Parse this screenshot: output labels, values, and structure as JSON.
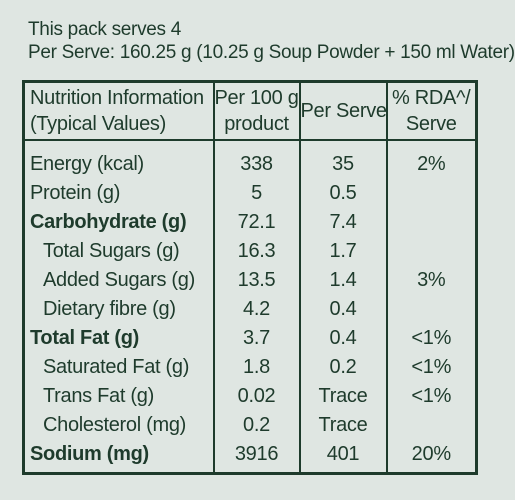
{
  "intro": {
    "serves": "This pack serves 4",
    "per_serve": "Per Serve: 160.25 g (10.25 g Soup Powder + 150 ml Water)"
  },
  "table": {
    "headers": {
      "col1": [
        "Nutrition Information",
        "(Typical Values)"
      ],
      "col2": [
        "Per 100 g",
        "product"
      ],
      "col3": [
        "Per Serve"
      ],
      "col4": [
        "% RDA^/",
        "Serve"
      ]
    },
    "rows": [
      {
        "name": "Energy (kcal)",
        "per100": "338",
        "perServe": "35",
        "rda": "2%",
        "bold": false,
        "indent": false
      },
      {
        "name": "Protein (g)",
        "per100": "5",
        "perServe": "0.5",
        "rda": "",
        "bold": false,
        "indent": false
      },
      {
        "name": "Carbohydrate (g)",
        "per100": "72.1",
        "perServe": "7.4",
        "rda": "",
        "bold": true,
        "indent": false
      },
      {
        "name": "Total Sugars (g)",
        "per100": "16.3",
        "perServe": "1.7",
        "rda": "",
        "bold": false,
        "indent": true
      },
      {
        "name": "Added Sugars (g)",
        "per100": "13.5",
        "perServe": "1.4",
        "rda": "3%",
        "bold": false,
        "indent": true
      },
      {
        "name": "Dietary fibre (g)",
        "per100": "4.2",
        "perServe": "0.4",
        "rda": "",
        "bold": false,
        "indent": true
      },
      {
        "name": "Total Fat (g)",
        "per100": "3.7",
        "perServe": "0.4",
        "rda": "<1%",
        "bold": true,
        "indent": false
      },
      {
        "name": "Saturated Fat (g)",
        "per100": "1.8",
        "perServe": "0.2",
        "rda": "<1%",
        "bold": false,
        "indent": true
      },
      {
        "name": "Trans Fat (g)",
        "per100": "0.02",
        "perServe": "Trace",
        "rda": "<1%",
        "bold": false,
        "indent": true
      },
      {
        "name": "Cholesterol (mg)",
        "per100": "0.2",
        "perServe": "Trace",
        "rda": "",
        "bold": false,
        "indent": true
      },
      {
        "name": "Sodium (mg)",
        "per100": "3916",
        "perServe": "401",
        "rda": "20%",
        "bold": true,
        "indent": false
      }
    ]
  },
  "colors": {
    "background": "#dfe6e2",
    "ink": "#1e3b2c"
  }
}
